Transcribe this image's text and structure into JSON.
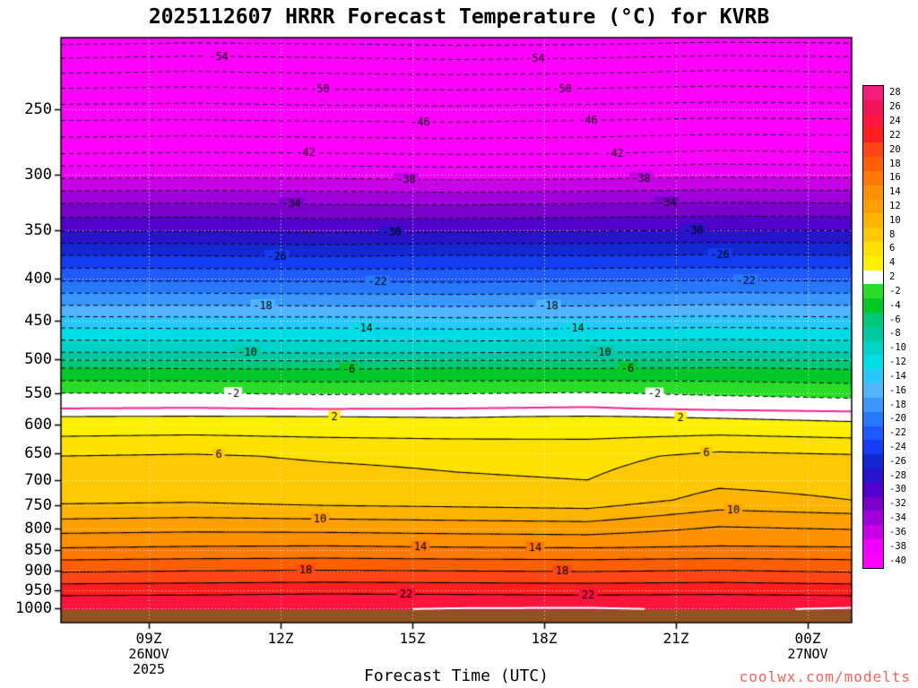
{
  "watermark": {
    "text": "coolwx.com/modelts",
    "color": "#F4655F"
  },
  "axes": {
    "pressure_ticks": [
      250,
      300,
      350,
      400,
      450,
      500,
      550,
      600,
      650,
      700,
      750,
      800,
      850,
      900,
      950,
      1000
    ],
    "time_ticks": [
      {
        "hour": 9,
        "label": "09Z",
        "sub": [
          "26NOV",
          "2025"
        ]
      },
      {
        "hour": 12,
        "label": "12Z",
        "sub": []
      },
      {
        "hour": 15,
        "label": "15Z",
        "sub": []
      },
      {
        "hour": 18,
        "label": "18Z",
        "sub": []
      },
      {
        "hour": 21,
        "label": "21Z",
        "sub": []
      },
      {
        "hour": 24,
        "label": "00Z",
        "sub": [
          "27NOV"
        ]
      }
    ]
  },
  "colorbar": {
    "labels": [
      28,
      26,
      24,
      22,
      20,
      18,
      16,
      14,
      12,
      10,
      8,
      6,
      4,
      2,
      -2,
      -4,
      -6,
      -8,
      -10,
      -12,
      -14,
      -16,
      -18,
      -20,
      -22,
      -24,
      -26,
      -28,
      -30,
      -32,
      -34,
      -36,
      -38,
      -40
    ]
  },
  "colormap": {
    "bins": [
      {
        "t": 26,
        "c": "#F01E78"
      },
      {
        "t": 24,
        "c": "#F0145A"
      },
      {
        "t": 22,
        "c": "#FF143C"
      },
      {
        "t": 20,
        "c": "#FF1E1E"
      },
      {
        "t": 18,
        "c": "#FF4614"
      },
      {
        "t": 16,
        "c": "#FF5F00"
      },
      {
        "t": 14,
        "c": "#FF7800"
      },
      {
        "t": 12,
        "c": "#FF9100"
      },
      {
        "t": 10,
        "c": "#FFA000"
      },
      {
        "t": 8,
        "c": "#FFB400"
      },
      {
        "t": 6,
        "c": "#FFC800"
      },
      {
        "t": 4,
        "c": "#FFE100"
      },
      {
        "t": 2,
        "c": "#FFF000"
      },
      {
        "t": -2,
        "c": "#FFFFFF"
      },
      {
        "t": -4,
        "c": "#28DC28"
      },
      {
        "t": -6,
        "c": "#00C828"
      },
      {
        "t": -8,
        "c": "#00C878"
      },
      {
        "t": -10,
        "c": "#00C8A0"
      },
      {
        "t": -12,
        "c": "#00D2C8"
      },
      {
        "t": -14,
        "c": "#00DCE6"
      },
      {
        "t": -16,
        "c": "#28C8FF"
      },
      {
        "t": -18,
        "c": "#50B4FF"
      },
      {
        "t": -20,
        "c": "#3C96FF"
      },
      {
        "t": -22,
        "c": "#2878FF"
      },
      {
        "t": -24,
        "c": "#1E5AFF"
      },
      {
        "t": -26,
        "c": "#143CF0"
      },
      {
        "t": -28,
        "c": "#1428D2"
      },
      {
        "t": -30,
        "c": "#2814C8"
      },
      {
        "t": -32,
        "c": "#5000C8"
      },
      {
        "t": -34,
        "c": "#7800C8"
      },
      {
        "t": -36,
        "c": "#A000DC"
      },
      {
        "t": -38,
        "c": "#C800E6"
      },
      {
        "t": -40,
        "c": "#F000FA"
      }
    ],
    "below": "#FF00FF"
  },
  "chart_data": {
    "type": "heatmap",
    "title": "2025112607 HRRR Forecast Temperature (°C) for KVRB",
    "xlabel": "Forecast Time (UTC)",
    "x_range_hours": [
      7,
      25
    ],
    "pressure_range_hpa": [
      205,
      1040
    ],
    "surface_pressure_hpa": 1004,
    "surface_color": "#8F5220",
    "contour_interval_c": 2,
    "labeled_contours_c": [
      -54,
      -50,
      -46,
      -42,
      -38,
      -34,
      -30,
      -26,
      -22,
      -18,
      -14,
      -10,
      -6,
      -2,
      2,
      6,
      10,
      14,
      18,
      22
    ],
    "zero_isotherm_color": "#FF1E96",
    "highlight_contour_c": 24,
    "highlight_contour_color": "#FFFFFF",
    "x_hours": [
      7,
      10,
      13,
      16,
      19,
      22,
      25
    ],
    "pressure_levels_hpa": [
      205,
      217,
      236,
      258,
      283,
      303,
      325,
      351,
      375,
      403,
      431,
      459,
      491,
      513,
      550,
      574,
      587,
      655,
      700,
      740,
      780,
      845,
      904,
      965,
      1005
    ],
    "temps_c": [
      [
        -57.0,
        -54.0,
        -50.0,
        -46.0,
        -42.0,
        -38.0,
        -34.0,
        -30.0,
        -26.0,
        -22.0,
        -18.0,
        -14.0,
        -10.0,
        -6.0,
        -2.0,
        0.0,
        2.0,
        6.0,
        6.8,
        7.5,
        10.0,
        14.0,
        18.0,
        22.0,
        23.8
      ],
      [
        -56.8,
        -53.7,
        -49.8,
        -45.9,
        -41.8,
        -37.9,
        -33.9,
        -30.0,
        -26.1,
        -22.0,
        -18.0,
        -14.1,
        -10.0,
        -6.1,
        -2.0,
        0.1,
        2.1,
        6.2,
        7.0,
        7.7,
        10.2,
        14.2,
        18.2,
        22.1,
        23.8
      ],
      [
        -56.9,
        -53.9,
        -50.1,
        -46.1,
        -41.9,
        -38.0,
        -34.1,
        -30.2,
        -26.2,
        -22.1,
        -18.1,
        -14.0,
        -10.2,
        -6.2,
        -2.2,
        -0.1,
        2.0,
        5.8,
        6.6,
        7.2,
        10.0,
        14.3,
        18.3,
        22.3,
        23.9
      ],
      [
        -57.1,
        -54.2,
        -50.2,
        -46.2,
        -42.1,
        -38.2,
        -34.2,
        -30.1,
        -26.0,
        -22.2,
        -18.2,
        -14.2,
        -10.1,
        -6.0,
        -2.1,
        0.0,
        1.9,
        5.6,
        6.2,
        7.0,
        9.8,
        14.1,
        18.2,
        22.2,
        24.3
      ],
      [
        -57.0,
        -54.0,
        -50.0,
        -46.0,
        -42.0,
        -38.1,
        -34.0,
        -30.0,
        -26.1,
        -22.0,
        -18.1,
        -14.1,
        -10.0,
        -6.1,
        -1.9,
        0.2,
        2.1,
        5.4,
        6.0,
        6.7,
        9.6,
        14.0,
        18.1,
        22.1,
        24.4
      ],
      [
        -56.7,
        -53.6,
        -49.7,
        -45.7,
        -41.6,
        -37.8,
        -33.8,
        -29.8,
        -25.9,
        -21.9,
        -17.9,
        -13.9,
        -9.9,
        -5.9,
        -2.3,
        -0.4,
        1.8,
        6.5,
        7.5,
        8.7,
        11.2,
        14.2,
        18.3,
        22.2,
        23.9
      ],
      [
        -56.8,
        -53.8,
        -49.9,
        -45.8,
        -41.8,
        -37.9,
        -33.9,
        -29.9,
        -26.0,
        -22.0,
        -18.0,
        -14.1,
        -10.0,
        -6.2,
        -2.6,
        -0.8,
        1.4,
        6.2,
        7.2,
        8.0,
        10.8,
        14.1,
        18.0,
        22.0,
        24.4
      ]
    ]
  }
}
